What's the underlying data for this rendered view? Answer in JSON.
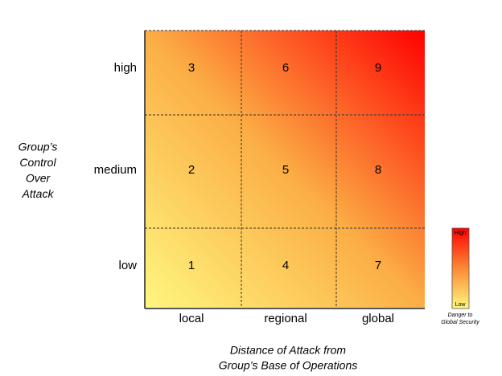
{
  "y_axis": {
    "title_lines": [
      "Group’s",
      "Control",
      "Over",
      "Attack"
    ]
  },
  "x_axis": {
    "title_lines": [
      "Distance of Attack from",
      "Group’s Base of Operations"
    ]
  },
  "columns": [
    "local",
    "regional",
    "global"
  ],
  "rows": [
    {
      "label": "high",
      "cells": [
        3,
        6,
        9
      ]
    },
    {
      "label": "medium",
      "cells": [
        2,
        5,
        8
      ]
    },
    {
      "label": "low",
      "cells": [
        1,
        4,
        7
      ]
    }
  ],
  "legend": {
    "high": "High",
    "low": "Low",
    "caption_lines": [
      "Danger to",
      "Global Security"
    ]
  }
}
